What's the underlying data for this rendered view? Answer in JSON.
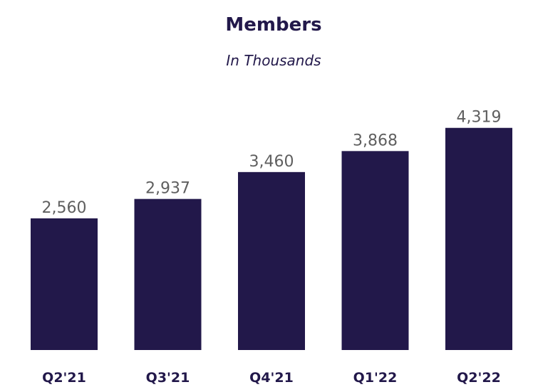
{
  "chart_data": {
    "type": "bar",
    "title": "Members",
    "subtitle": "In Thousands",
    "categories": [
      "Q2'21",
      "Q3'21",
      "Q4'21",
      "Q1'22",
      "Q2'22"
    ],
    "values": [
      2560,
      2937,
      3460,
      3868,
      4319
    ],
    "value_labels": [
      "2,560",
      "2,937",
      "3,460",
      "3,868",
      "4,319"
    ],
    "grid": false,
    "legend": "none",
    "colors": {
      "bar": "#22184a",
      "title": "#22184a",
      "value_label": "#5f5f5f"
    }
  }
}
